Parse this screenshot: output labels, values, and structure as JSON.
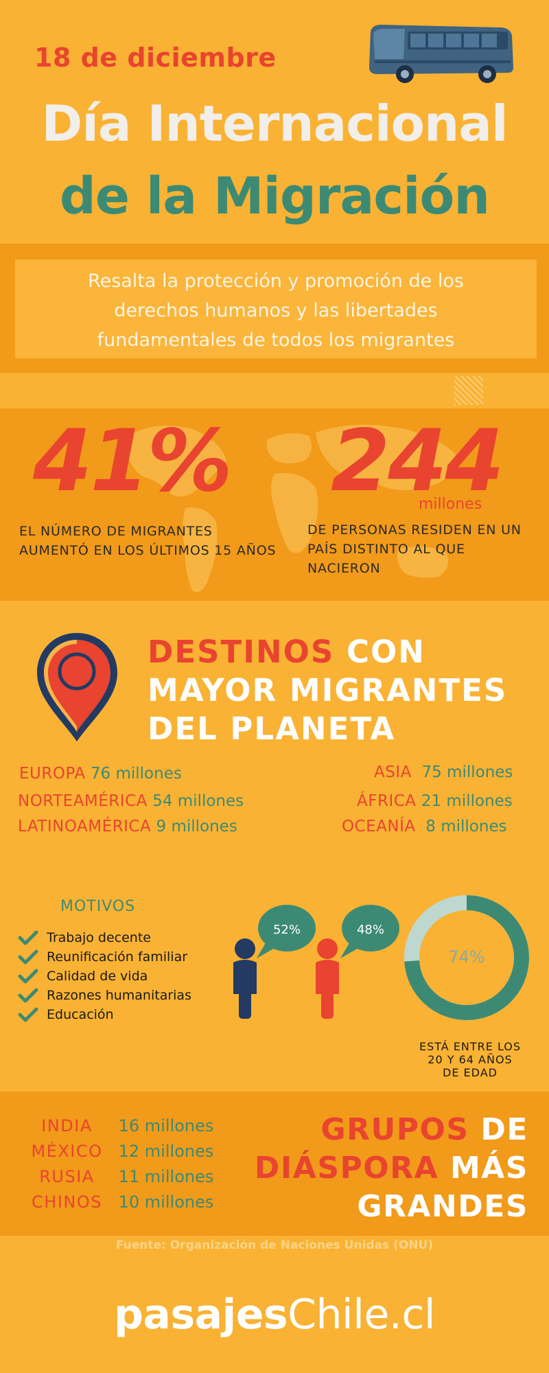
{
  "header": {
    "date": "18 de diciembre",
    "title_line1": "Día Internacional",
    "title_line2": "de la Migración"
  },
  "subtitle": {
    "line1": "Resalta la protección y promoción de los",
    "line2": "derechos humanos y las libertades",
    "line3": "fundamentales de todos los migrantes"
  },
  "stats": {
    "left_value": "41%",
    "left_caption": "EL NÚMERO DE MIGRANTES AUMENTÓ EN LOS ÚLTIMOS 15 AÑOS",
    "right_value": "244",
    "right_unit": "millones",
    "right_caption": "DE PERSONAS RESIDEN EN UN PAÍS DISTINTO AL QUE NACIERON"
  },
  "destinos": {
    "title_red": "DESTINOS",
    "title_rest1": " CON",
    "title_line2": "MAYOR MIGRANTES",
    "title_line3": "DEL PLANETA",
    "regions": [
      {
        "name": "EUROPA",
        "value": "76 millones"
      },
      {
        "name": "ASIA",
        "value": "75 millones"
      },
      {
        "name": "NORTEAMÉRICA",
        "value": "54 millones"
      },
      {
        "name": "ÁFRICA",
        "value": "21 millones"
      },
      {
        "name": "LATINOAMÉRICA",
        "value": "9 millones"
      },
      {
        "name": "OCEANÍA",
        "value": "8 millones"
      }
    ]
  },
  "motivos": {
    "title": "MOTIVOS",
    "items": [
      "Trabajo decente",
      "Reunificación familiar",
      "Calidad de vida",
      "Razones humanitarias",
      "Educación"
    ]
  },
  "gender": {
    "male_pct": "52%",
    "female_pct": "48%"
  },
  "age": {
    "pct_value": 74,
    "pct_label": "74%",
    "line1": "ESTÁ ENTRE LOS",
    "line2": "20 Y 64 AÑOS",
    "line3": "DE EDAD"
  },
  "diaspora": {
    "rows": [
      {
        "name": "INDIA",
        "value": "16 millones"
      },
      {
        "name": "MÉXICO",
        "value": "12 millones"
      },
      {
        "name": "RUSIA",
        "value": "11 millones"
      },
      {
        "name": "CHINOS",
        "value": "10 millones"
      }
    ],
    "title_red1": "GRUPOS",
    "title_white1": " DE",
    "title_red2": "DIÁSPORA",
    "title_white2": " MÁS",
    "title_line3": "GRANDES"
  },
  "footer": {
    "source": "Fuente: Organización de Naciones Unidas (ONU)",
    "brand_bold": "pasajes",
    "brand_light": "Chile.cl"
  },
  "colors": {
    "background": "#F9B233",
    "band": "#F29A19",
    "accent_red": "#E8442F",
    "accent_teal": "#3D8A74",
    "navy": "#233A63"
  },
  "icons": [
    "bus-icon",
    "world-map-icon",
    "location-pin-icon",
    "check-icon",
    "male-person-icon",
    "female-person-icon",
    "speech-bubble-icon"
  ]
}
